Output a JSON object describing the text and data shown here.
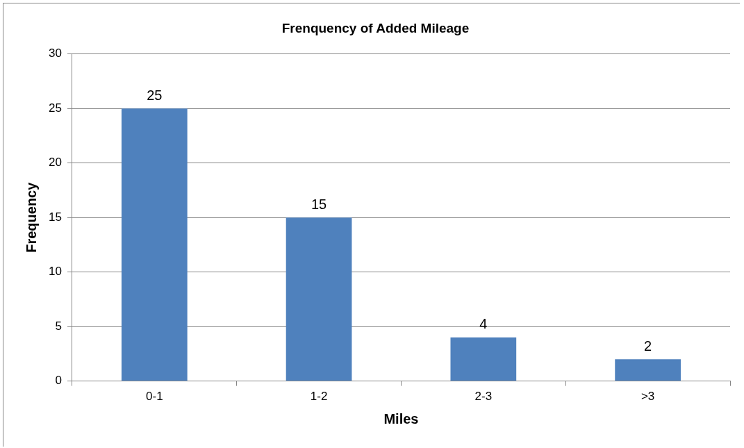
{
  "chart_data": {
    "type": "bar",
    "title": "Frenquency of Added Mileage",
    "xlabel": "Miles",
    "ylabel": "Frequency",
    "categories": [
      "0-1",
      "1-2",
      "2-3",
      ">3"
    ],
    "values": [
      25,
      15,
      4,
      2
    ],
    "color": "#4f81bd",
    "ylim": [
      0,
      30
    ],
    "yticks": [
      0,
      5,
      10,
      15,
      20,
      25,
      30
    ],
    "grid": "y",
    "data_labels": true,
    "legend": false
  }
}
